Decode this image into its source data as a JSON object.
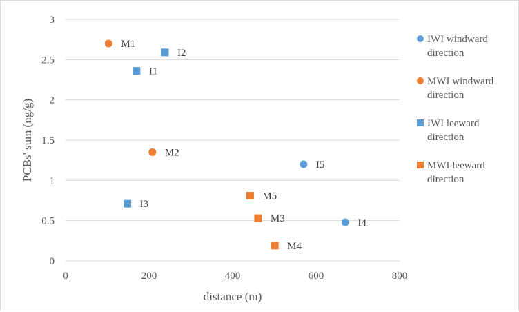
{
  "chart_data": {
    "type": "scatter",
    "xlabel": "distance (m)",
    "ylabel": "PCBs' sum (ng/g)",
    "xlim": [
      0,
      800
    ],
    "ylim": [
      0,
      3
    ],
    "x_ticks": [
      "0",
      "200",
      "400",
      "600",
      "800"
    ],
    "y_ticks": [
      "0",
      "0.5",
      "1",
      "1.5",
      "2",
      "2.5",
      "3"
    ],
    "grid": "horizontal",
    "legend_position": "right",
    "series": [
      {
        "name": "IWI windward direction",
        "marker": "circle",
        "color": "#5b9bd5",
        "points": [
          {
            "label": "I5",
            "x": 570,
            "y": 1.2
          },
          {
            "label": "I4",
            "x": 670,
            "y": 0.48
          }
        ]
      },
      {
        "name": "MWI windward direction",
        "marker": "circle",
        "color": "#ed7d31",
        "points": [
          {
            "label": "M1",
            "x": 103,
            "y": 2.7
          },
          {
            "label": "M2",
            "x": 208,
            "y": 1.35
          }
        ]
      },
      {
        "name": "IWI leeward direction",
        "marker": "square",
        "color": "#5b9bd5",
        "points": [
          {
            "label": "I2",
            "x": 238,
            "y": 2.59
          },
          {
            "label": "I1",
            "x": 170,
            "y": 2.36
          },
          {
            "label": "I3",
            "x": 148,
            "y": 0.71
          }
        ]
      },
      {
        "name": "MWI leeward direction",
        "marker": "square",
        "color": "#ed7d31",
        "points": [
          {
            "label": "M5",
            "x": 442,
            "y": 0.81
          },
          {
            "label": "M3",
            "x": 461,
            "y": 0.53
          },
          {
            "label": "M4",
            "x": 501,
            "y": 0.19
          }
        ]
      }
    ],
    "legend": [
      {
        "lines": [
          "IWI windward",
          "direction"
        ]
      },
      {
        "lines": [
          "MWI windward",
          "direction"
        ]
      },
      {
        "lines": [
          "IWI leeward",
          "direction"
        ]
      },
      {
        "lines": [
          "MWI leeward",
          "direction"
        ]
      }
    ]
  }
}
